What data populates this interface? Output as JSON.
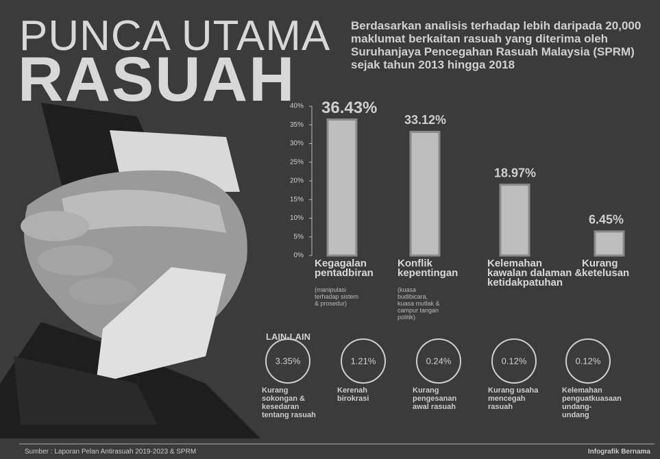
{
  "title_line1": "PUNCA UTAMA",
  "title_line2": "RASUAH",
  "description": "Berdasarkan analisis terhadap lebih daripada 20,000 maklumat berkaitan rasuah yang diterima oleh Suruhanjaya Pencegahan Rasuah Malaysia (SPRM) sejak tahun 2013 hingga 2018",
  "chart_data": {
    "type": "bar",
    "categories": [
      "Kegagalan pentadbiran",
      "Konflik kepentingan",
      "Kelemahan kawalan dalaman & ketidakpatuhan",
      "Kurang ketelusan"
    ],
    "category_notes": [
      "(manipulasi terhadap sistem & prosedur)",
      "(kuasa budibicara, kuasa mutlak & campur tangan politik)"
    ],
    "values": [
      36.43,
      33.12,
      18.97,
      6.45
    ],
    "value_labels": [
      "36.43%",
      "33.12%",
      "18.97%",
      "6.45%"
    ],
    "color": "#bdbdbd",
    "ylim": [
      0,
      40
    ],
    "yticks": [
      {
        "value": 0,
        "label": "0%"
      },
      {
        "value": 5,
        "label": "5%"
      },
      {
        "value": 10,
        "label": "10%"
      },
      {
        "value": 15,
        "label": "15%"
      },
      {
        "value": 20,
        "label": "20%"
      },
      {
        "value": 25,
        "label": "25%"
      },
      {
        "value": 30,
        "label": "30%"
      },
      {
        "value": 35,
        "label": "35%"
      },
      {
        "value": 40,
        "label": "40%"
      }
    ]
  },
  "others": {
    "heading": "LAIN-LAIN",
    "items": [
      {
        "value": 3.35,
        "value_label": "3.35%",
        "text": "Kurang sokongan & kesedaran tentang rasuah"
      },
      {
        "value": 1.21,
        "value_label": "1.21%",
        "text": "Kerenah birokrasi"
      },
      {
        "value": 0.24,
        "value_label": "0.24%",
        "text": "Kurang pengesanan awal rasuah"
      },
      {
        "value": 0.12,
        "value_label": "0.12%",
        "text": "Kurang usaha mencegah rasuah"
      },
      {
        "value": 0.12,
        "value_label": "0.12%",
        "text": "Kelemahan penguatkuasaan undang-undang"
      }
    ]
  },
  "source": "Sumber : Laporan Pelan Antirasuah 2019-2023 & SPRM",
  "credit": "Infografik Bernama"
}
